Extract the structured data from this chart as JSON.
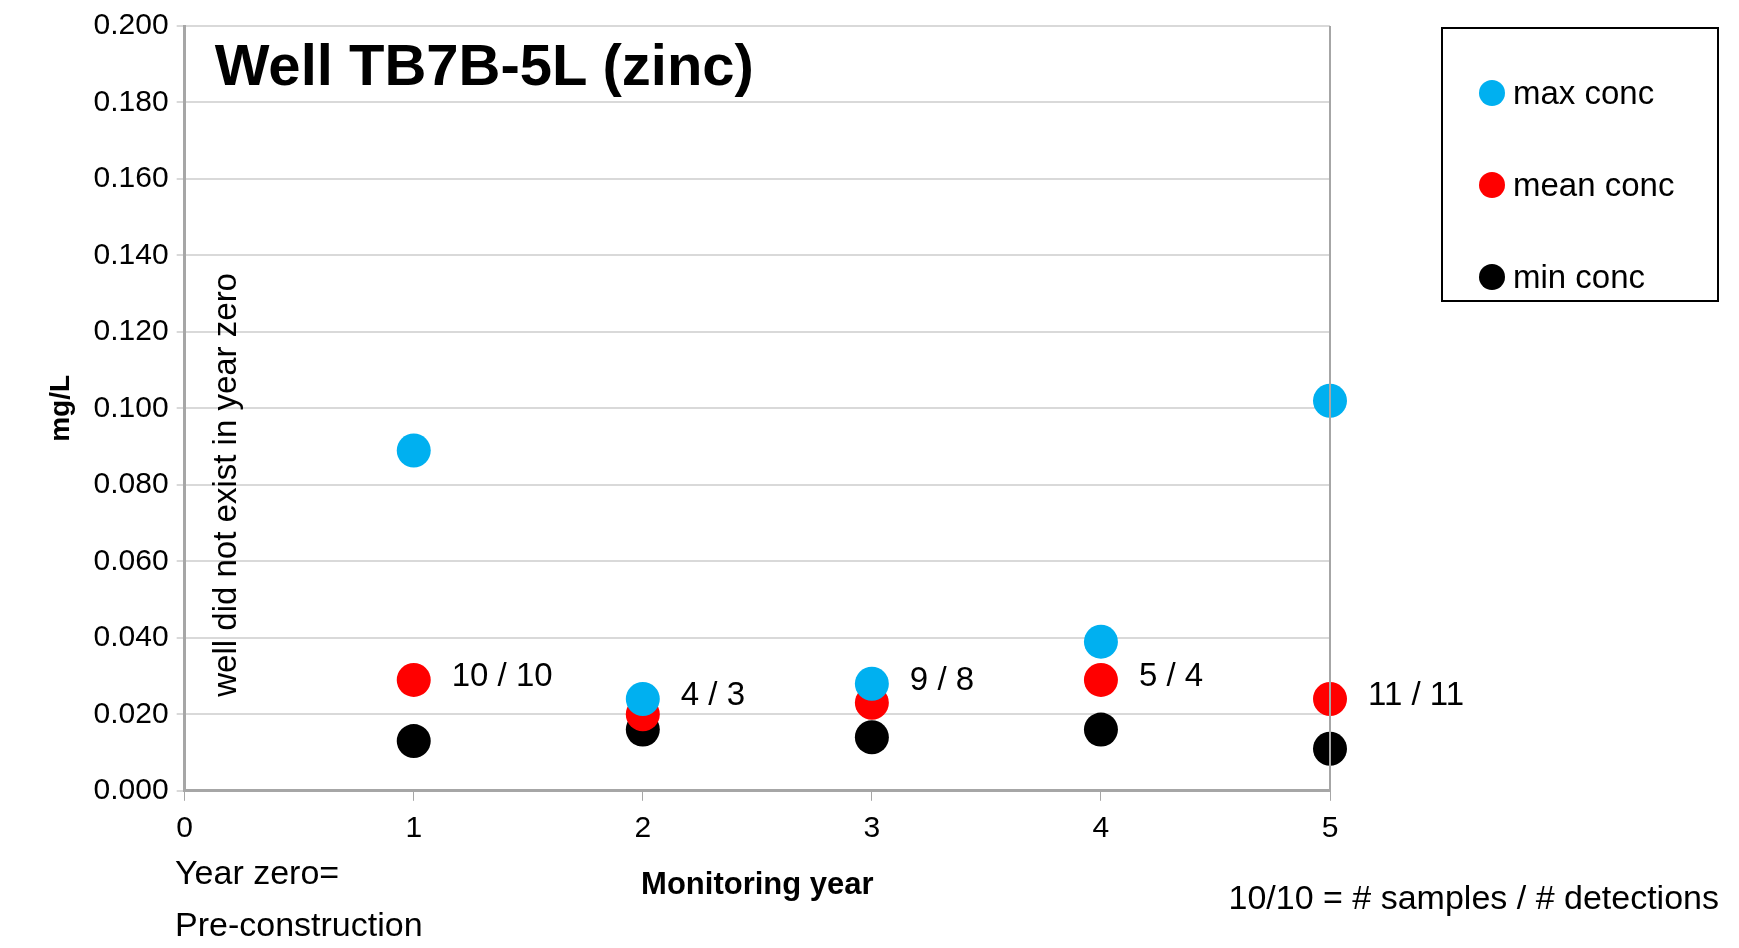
{
  "chart_data": {
    "type": "scatter",
    "title": "Well TB7B-5L (zinc)",
    "xlabel": "Monitoring year",
    "ylabel": "mg/L",
    "x": [
      1,
      2,
      3,
      4,
      5
    ],
    "series": [
      {
        "name": "max conc",
        "color": "#00b0f0",
        "values": [
          0.089,
          0.024,
          0.028,
          0.039,
          0.102
        ]
      },
      {
        "name": "mean conc",
        "color": "#ff0000",
        "values": [
          0.029,
          0.02,
          0.023,
          0.029,
          0.024
        ]
      },
      {
        "name": "min conc",
        "color": "#000000",
        "values": [
          0.013,
          0.016,
          0.014,
          0.016,
          0.011
        ]
      }
    ],
    "xlim": [
      0,
      5
    ],
    "xticks": [
      0,
      1,
      2,
      3,
      4,
      5
    ],
    "ylim": [
      0,
      0.2
    ],
    "yticks": [
      {
        "value": 0,
        "label": "0.000"
      },
      {
        "value": 0.02,
        "label": "0.020"
      },
      {
        "value": 0.04,
        "label": "0.040"
      },
      {
        "value": 0.06,
        "label": "0.060"
      },
      {
        "value": 0.08,
        "label": "0.080"
      },
      {
        "value": 0.1,
        "label": "0.100"
      },
      {
        "value": 0.12,
        "label": "0.120"
      },
      {
        "value": 0.14,
        "label": "0.140"
      },
      {
        "value": 0.16,
        "label": "0.160"
      },
      {
        "value": 0.18,
        "label": "0.180"
      },
      {
        "value": 0.2,
        "label": "0.200"
      }
    ],
    "grid": "y",
    "legend": "top right",
    "marker": "circle",
    "annotations": [
      "well did not exist in year zero",
      "Year zero= Pre-construction",
      "10/10 = # samples / # detections",
      {
        "text": "10 / 10",
        "x": 1,
        "y": 0.029
      },
      {
        "text": "4 / 3",
        "x": 2,
        "y": 0.024
      },
      {
        "text": "9 / 8",
        "x": 3,
        "y": 0.028
      },
      {
        "text": "5 / 4",
        "x": 4,
        "y": 0.029
      },
      {
        "text": "11 / 11",
        "x": 5,
        "y": 0.024
      }
    ]
  }
}
